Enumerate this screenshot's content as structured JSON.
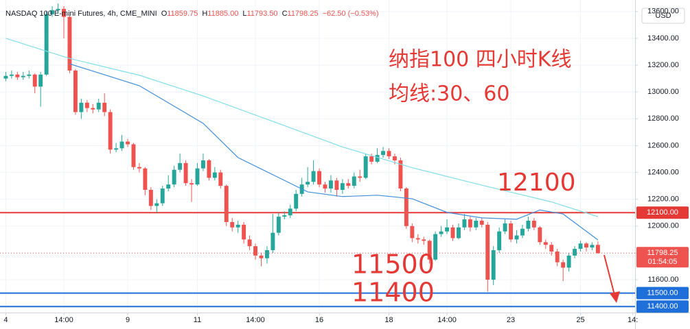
{
  "chart_data": {
    "type": "candlestick",
    "title": "NASDAQ 100 E-mini Futures, 4h, CME_MINI",
    "header_values": [
      {
        "key": "O",
        "value": "11859.75"
      },
      {
        "key": "H",
        "value": "11885.00"
      },
      {
        "key": "L",
        "value": "11793.50"
      },
      {
        "key": "C",
        "value": "11798.25"
      }
    ],
    "change": "−62.50 (−0.53%)",
    "currency": "USD",
    "countdown": "01:54:05",
    "annotations": [
      "纳指100 四小时K线",
      "均线:30、60",
      "12100",
      "11500",
      "11400"
    ],
    "up_color": "#26a69a",
    "down_color": "#ef5350",
    "grid": true,
    "ylim": [
      11355,
      13686
    ],
    "yticks": [
      {
        "value": 11600,
        "label": "11600.00"
      },
      {
        "value": 11800,
        "label": "11800.00"
      },
      {
        "value": 12000,
        "label": "12000.00"
      },
      {
        "value": 12200,
        "label": "12200.00"
      },
      {
        "value": 12400,
        "label": "12400.00"
      },
      {
        "value": 12600,
        "label": "12600.00"
      },
      {
        "value": 12800,
        "label": "12800.00"
      },
      {
        "value": 13000,
        "label": "13000.00"
      },
      {
        "value": 13200,
        "label": "13200.00"
      },
      {
        "value": 13400,
        "label": "13400.00"
      },
      {
        "value": 13600,
        "label": "13600.00"
      }
    ],
    "xlim": [
      -1,
      108.4
    ],
    "xticks": [
      {
        "value": 0,
        "label": "4"
      },
      {
        "value": 10,
        "label": "14:00"
      },
      {
        "value": 21,
        "label": "9"
      },
      {
        "value": 33,
        "label": "11"
      },
      {
        "value": 43,
        "label": "14:00"
      },
      {
        "value": 54,
        "label": "16"
      },
      {
        "value": 66,
        "label": "18"
      },
      {
        "value": 76,
        "label": "14:00"
      },
      {
        "value": 87,
        "label": "23"
      },
      {
        "value": 99,
        "label": "25"
      },
      {
        "value": 108,
        "label": "14:"
      }
    ],
    "hlines": [
      {
        "value": 12100,
        "label": "12100.00",
        "color": "#e53935"
      },
      {
        "value": 11500,
        "label": "11500.00",
        "color": "#1e6fd9"
      },
      {
        "value": 11400,
        "label": "11400.00",
        "color": "#1e6fd9"
      }
    ],
    "open": [
      13100,
      13120,
      13130,
      13110,
      13120,
      13130,
      13040,
      13130,
      13580,
      13610,
      13620,
      13560,
      13160,
      12850,
      12920,
      12880,
      12870,
      12920,
      12850,
      12570,
      12580,
      12630,
      12610,
      12440,
      12430,
      12270,
      12150,
      12170,
      12280,
      12310,
      12420,
      12470,
      12320,
      12310,
      12430,
      12490,
      12360,
      12400,
      12300,
      12030,
      11990,
      12010,
      11900,
      11850,
      11780,
      11760,
      11820,
      11950,
      12070,
      12080,
      12130,
      12240,
      12310,
      12330,
      12410,
      12310,
      12280,
      12340,
      12270,
      12320,
      12300,
      12370,
      12360,
      12520,
      12480,
      12530,
      12560,
      12520,
      12490,
      12280,
      12000,
      11910,
      11900,
      11890,
      11750,
      11940,
      11960,
      11990,
      11910,
      11990,
      12050,
      11990,
      12040,
      12010,
      11600,
      11820,
      11960,
      12020,
      11900,
      11930,
      11980,
      12040,
      11990,
      11880,
      11860,
      11810,
      11730,
      11690,
      11780,
      11830,
      11870,
      11840,
      11859.75
    ],
    "high": [
      13150,
      13160,
      13150,
      13150,
      13160,
      13140,
      13150,
      13600,
      13640,
      13660,
      13640,
      13570,
      13170,
      12950,
      12940,
      12910,
      12950,
      12990,
      12870,
      12620,
      12680,
      12650,
      12620,
      12470,
      12440,
      12290,
      12200,
      12300,
      12380,
      12450,
      12540,
      12490,
      12350,
      12470,
      12540,
      12500,
      12440,
      12420,
      12310,
      12060,
      12040,
      12030,
      11930,
      11870,
      11800,
      11850,
      12090,
      12100,
      12110,
      12160,
      12270,
      12360,
      12440,
      12490,
      12430,
      12330,
      12380,
      12360,
      12350,
      12350,
      12400,
      12420,
      12540,
      12540,
      12580,
      12590,
      12580,
      12540,
      12510,
      12290,
      12020,
      11940,
      11920,
      11900,
      11960,
      12000,
      12050,
      12010,
      12020,
      12090,
      12070,
      12060,
      12060,
      12030,
      11850,
      11990,
      12050,
      12040,
      11970,
      12010,
      12070,
      12060,
      12000,
      11900,
      11880,
      11830,
      11750,
      11800,
      11850,
      11890,
      11880,
      11880,
      11885
    ],
    "low": [
      13080,
      13100,
      13090,
      13090,
      13100,
      12990,
      12890,
      13120,
      13560,
      13590,
      13400,
      13140,
      12830,
      12800,
      12850,
      12840,
      12850,
      12820,
      12540,
      12550,
      12560,
      12590,
      12420,
      12400,
      12230,
      12120,
      12100,
      12150,
      12260,
      12290,
      12400,
      12300,
      12180,
      12300,
      12410,
      12340,
      12340,
      12280,
      12000,
      11960,
      11950,
      11870,
      11820,
      11750,
      11700,
      11720,
      11800,
      11930,
      12050,
      12060,
      12110,
      12220,
      12290,
      12310,
      12290,
      12250,
      12250,
      12220,
      12240,
      12280,
      12280,
      12330,
      12350,
      12460,
      12470,
      12510,
      12500,
      12460,
      12260,
      11980,
      11880,
      11870,
      11860,
      11720,
      11740,
      11920,
      11940,
      11890,
      11900,
      11970,
      11960,
      11970,
      11990,
      11510,
      11560,
      11800,
      11940,
      11880,
      11870,
      11910,
      11960,
      11970,
      11860,
      11830,
      11780,
      11700,
      11590,
      11660,
      11760,
      11810,
      11810,
      11820,
      11793.5
    ],
    "close": [
      13120,
      13130,
      13110,
      13120,
      13130,
      13040,
      13130,
      13580,
      13610,
      13620,
      13560,
      13160,
      12850,
      12920,
      12880,
      12870,
      12920,
      12850,
      12570,
      12580,
      12630,
      12610,
      12440,
      12430,
      12270,
      12150,
      12170,
      12280,
      12310,
      12420,
      12470,
      12320,
      12310,
      12430,
      12490,
      12360,
      12400,
      12300,
      12030,
      11990,
      12010,
      11900,
      11850,
      11780,
      11760,
      11820,
      11950,
      12070,
      12080,
      12130,
      12240,
      12310,
      12330,
      12410,
      12310,
      12280,
      12340,
      12270,
      12320,
      12300,
      12370,
      12360,
      12520,
      12480,
      12530,
      12560,
      12520,
      12490,
      12280,
      12000,
      11910,
      11900,
      11890,
      11750,
      11940,
      11960,
      11990,
      11910,
      11990,
      12050,
      11990,
      12040,
      12010,
      11600,
      11820,
      11960,
      12020,
      11900,
      11930,
      11980,
      12040,
      11990,
      11880,
      11860,
      11810,
      11730,
      11690,
      11780,
      11830,
      11870,
      11840,
      11859.75,
      11798.25
    ],
    "series": [
      {
        "color": "#80deea",
        "x": [
          0,
          11,
          23,
          34,
          47,
          58,
          70,
          82,
          94,
          102
        ],
        "values": [
          13400,
          13250,
          13125,
          12970,
          12765,
          12590,
          12435,
          12305,
          12180,
          12070
        ]
      },
      {
        "color": "#3f8fdc",
        "x": [
          11,
          23,
          34,
          40,
          46,
          52,
          58,
          64,
          70,
          76,
          82,
          88,
          92,
          96,
          102
        ],
        "values": [
          13210,
          13047,
          12766,
          12511,
          12383,
          12255,
          12220,
          12230,
          12204,
          12102,
          12061,
          12051,
          12120,
          12090,
          11897
        ]
      }
    ]
  }
}
